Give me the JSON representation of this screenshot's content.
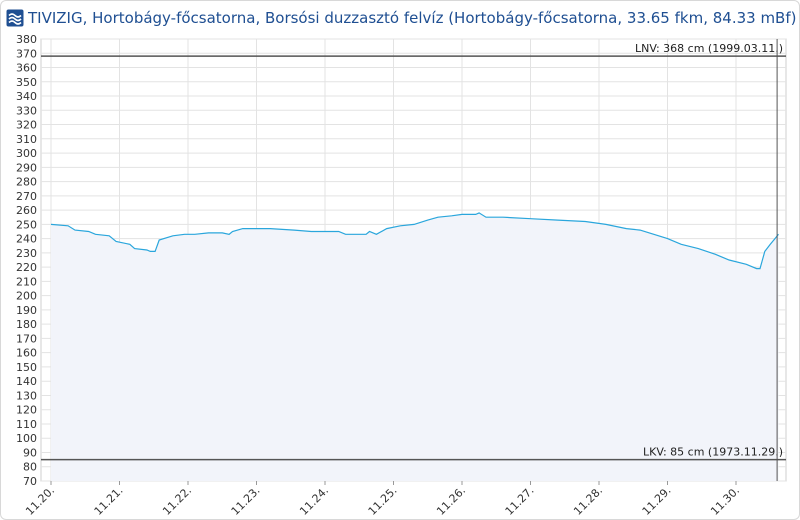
{
  "header": {
    "title": "TIVIZIG, Hortobágy-főcsatorna, Borsósi duzzasztó felvíz (Hortobágy-főcsatorna, 33.65 fkm, 84.33 mBf)",
    "logo_icon": "tivizig-logo-icon"
  },
  "colors": {
    "title": "#1f4f92",
    "series_line": "#2aa6dc",
    "area_fill": "#f2f4fa",
    "grid": "#e3e3e3",
    "reference_lines": "#555555"
  },
  "chart_data": {
    "type": "area",
    "title": "TIVIZIG, Hortobágy-főcsatorna, Borsósi duzzasztó felvíz (Hortobágy-főcsatorna, 33.65 fkm, 84.33 mBf)",
    "xlabel": "",
    "ylabel": "",
    "ylim": [
      70,
      380
    ],
    "y_ticks": [
      70,
      80,
      90,
      100,
      110,
      120,
      130,
      140,
      150,
      160,
      170,
      180,
      190,
      200,
      210,
      220,
      230,
      240,
      250,
      260,
      270,
      280,
      290,
      300,
      310,
      320,
      330,
      340,
      350,
      360,
      370,
      380
    ],
    "x_range": [
      0,
      10.6
    ],
    "x_ticks": [
      {
        "x": 0,
        "label": "11.20."
      },
      {
        "x": 1,
        "label": "11.21."
      },
      {
        "x": 2,
        "label": "11.22."
      },
      {
        "x": 3,
        "label": "11.23."
      },
      {
        "x": 4,
        "label": "11.24."
      },
      {
        "x": 5,
        "label": "11.25."
      },
      {
        "x": 6,
        "label": "11.26."
      },
      {
        "x": 7,
        "label": "11.27."
      },
      {
        "x": 8,
        "label": "11.28."
      },
      {
        "x": 9,
        "label": "11.29."
      },
      {
        "x": 10,
        "label": "11.30."
      }
    ],
    "grid": true,
    "reference_lines": [
      {
        "value": 368,
        "label": "LNV: 368 cm (1999.03.11.)"
      },
      {
        "value": 85,
        "label": "LKV: 85 cm (1973.11.29.)"
      }
    ],
    "vertical_marker_x": 10.6,
    "series": [
      {
        "values": [
          [
            0.0,
            250
          ],
          [
            0.25,
            249
          ],
          [
            0.35,
            246
          ],
          [
            0.55,
            245
          ],
          [
            0.65,
            243
          ],
          [
            0.85,
            242
          ],
          [
            0.95,
            238
          ],
          [
            1.15,
            236
          ],
          [
            1.22,
            233
          ],
          [
            1.4,
            232
          ],
          [
            1.45,
            231
          ],
          [
            1.52,
            231
          ],
          [
            1.58,
            239
          ],
          [
            1.78,
            242
          ],
          [
            1.95,
            243
          ],
          [
            2.1,
            243
          ],
          [
            2.3,
            244
          ],
          [
            2.5,
            244
          ],
          [
            2.6,
            243
          ],
          [
            2.65,
            245
          ],
          [
            2.8,
            247
          ],
          [
            3.2,
            247
          ],
          [
            3.55,
            246
          ],
          [
            3.8,
            245
          ],
          [
            4.2,
            245
          ],
          [
            4.3,
            243
          ],
          [
            4.6,
            243
          ],
          [
            4.65,
            245
          ],
          [
            4.75,
            243
          ],
          [
            4.9,
            247
          ],
          [
            5.1,
            249
          ],
          [
            5.3,
            250
          ],
          [
            5.5,
            253
          ],
          [
            5.65,
            255
          ],
          [
            5.85,
            256
          ],
          [
            6.0,
            257
          ],
          [
            6.2,
            257
          ],
          [
            6.25,
            258
          ],
          [
            6.35,
            255
          ],
          [
            6.6,
            255
          ],
          [
            7.0,
            254
          ],
          [
            7.4,
            253
          ],
          [
            7.8,
            252
          ],
          [
            8.1,
            250
          ],
          [
            8.4,
            247
          ],
          [
            8.6,
            246
          ],
          [
            8.8,
            243
          ],
          [
            9.0,
            240
          ],
          [
            9.2,
            236
          ],
          [
            9.45,
            233
          ],
          [
            9.7,
            229
          ],
          [
            9.9,
            225
          ],
          [
            10.15,
            222
          ],
          [
            10.3,
            219
          ],
          [
            10.35,
            219
          ],
          [
            10.42,
            231
          ],
          [
            10.5,
            236
          ],
          [
            10.57,
            240
          ],
          [
            10.62,
            243
          ]
        ]
      }
    ]
  }
}
